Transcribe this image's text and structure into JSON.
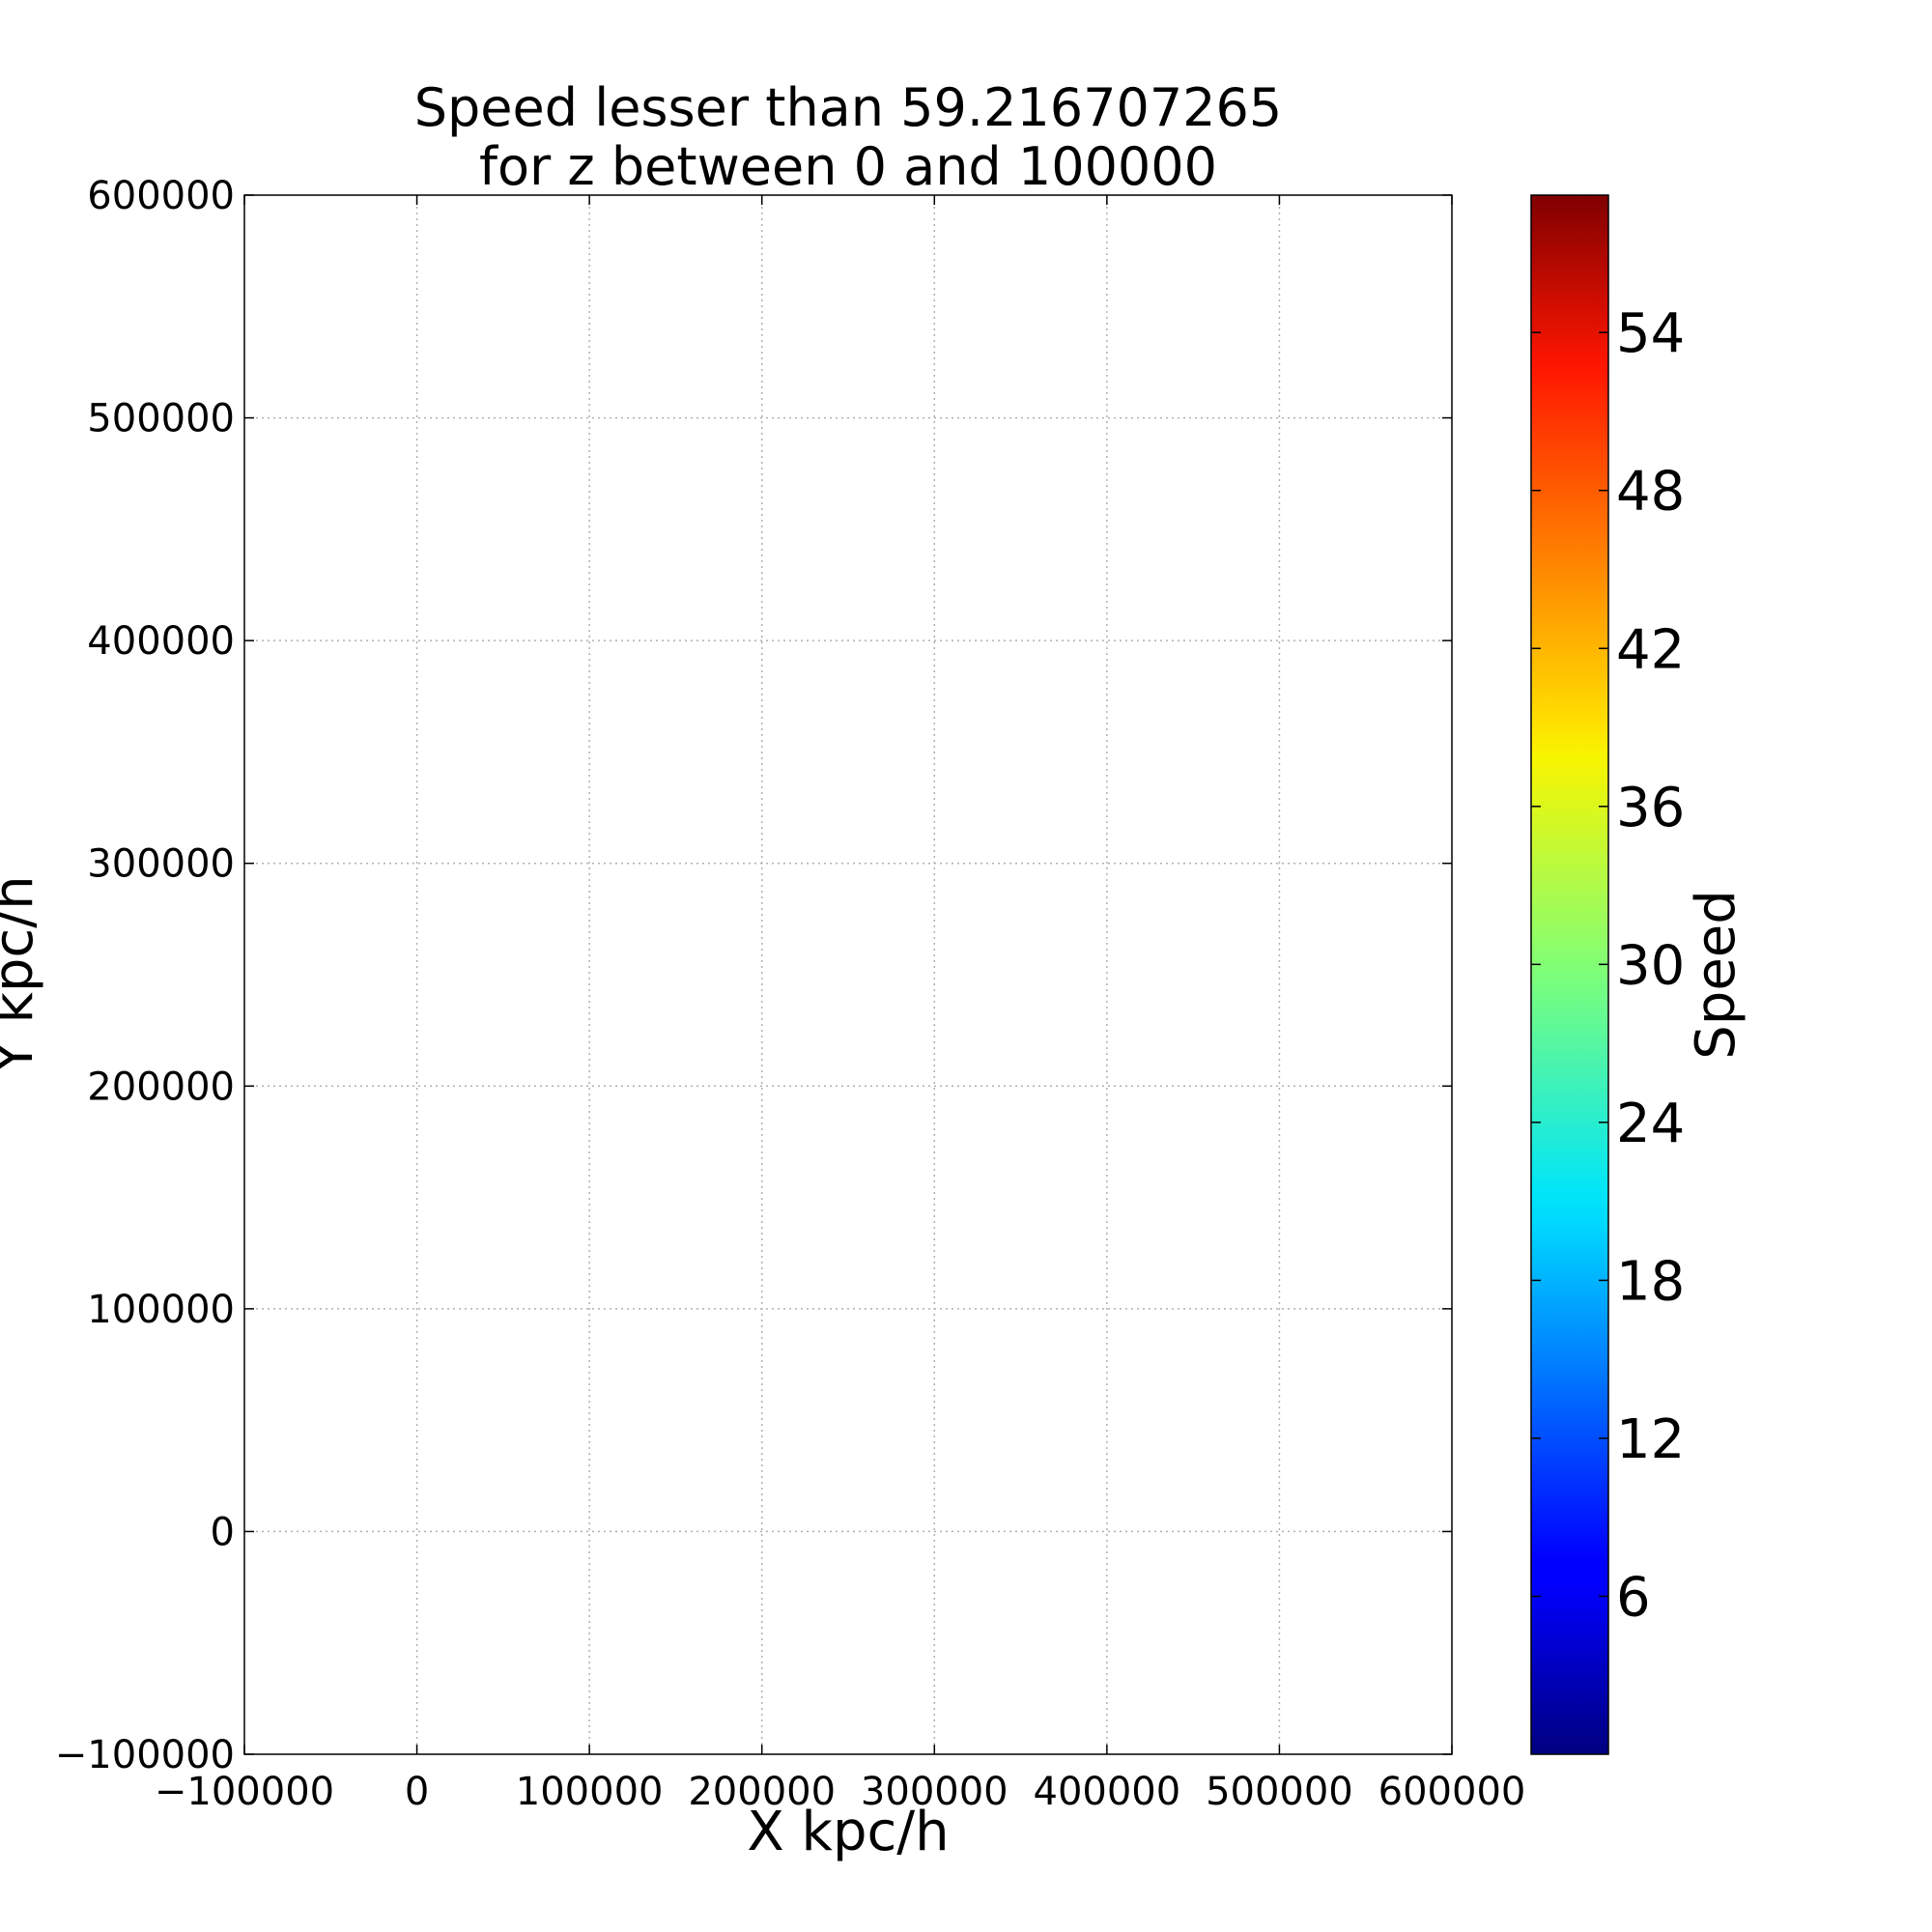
{
  "chart_data": {
    "type": "scatter",
    "title_line1": "Speed lesser than 59.216707265",
    "title_line2": "for z between 0 and 100000",
    "xlabel": "X kpc/h",
    "ylabel": "Y kpc/h",
    "xlim": [
      -100000,
      600000
    ],
    "ylim": [
      -100000,
      600000
    ],
    "xticks": [
      "−100000",
      "0",
      "100000",
      "200000",
      "300000",
      "400000",
      "500000",
      "600000"
    ],
    "yticks": [
      "−100000",
      "0",
      "100000",
      "200000",
      "300000",
      "400000",
      "500000",
      "600000"
    ],
    "grid": true,
    "colorbar": {
      "label": "Speed",
      "colormap": "jet",
      "range": [
        0,
        59.216707265
      ],
      "ticks": [
        "6",
        "12",
        "18",
        "24",
        "30",
        "36",
        "42",
        "48",
        "54"
      ]
    },
    "data_extent": {
      "x": [
        0,
        500000
      ],
      "y": [
        0,
        500000
      ]
    },
    "points": []
  }
}
